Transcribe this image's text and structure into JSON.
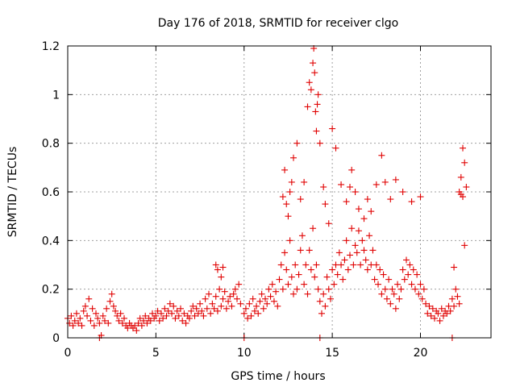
{
  "chart_data": {
    "type": "scatter",
    "title": "Day 176 of 2018, SRMTID for receiver clgo",
    "xlabel": "GPS time / hours",
    "ylabel": "SRMTID / TECUs",
    "xlim": [
      0,
      24
    ],
    "ylim": [
      0,
      1.2
    ],
    "xticks": [
      0,
      5,
      10,
      15,
      20
    ],
    "xtick_labels": [
      "0",
      "5",
      "10",
      "15",
      "20"
    ],
    "yticks": [
      0,
      0.2,
      0.4,
      0.6,
      0.8,
      1,
      1.2
    ],
    "ytick_labels": [
      "0",
      "0.2",
      "0.4",
      "0.6",
      "0.8",
      "1",
      "1.2"
    ],
    "grid": true,
    "marker": "+",
    "color": "#e00000",
    "series": [
      {
        "name": "SRMTID",
        "x": [
          0.0,
          0.1,
          0.2,
          0.3,
          0.4,
          0.5,
          0.6,
          0.7,
          0.8,
          0.9,
          1.0,
          1.1,
          1.2,
          1.3,
          1.4,
          1.5,
          1.6,
          1.7,
          1.8,
          2.0,
          2.1,
          2.2,
          2.3,
          2.4,
          2.5,
          2.6,
          2.7,
          2.8,
          2.9,
          3.0,
          3.1,
          3.2,
          3.3,
          3.4,
          3.5,
          3.6,
          3.7,
          3.8,
          3.9,
          4.0,
          4.1,
          4.2,
          4.3,
          4.4,
          4.5,
          4.6,
          4.7,
          4.8,
          4.9,
          5.0,
          5.1,
          5.2,
          5.3,
          5.4,
          5.5,
          5.6,
          5.7,
          5.8,
          5.9,
          6.0,
          6.1,
          6.2,
          6.3,
          6.4,
          6.5,
          6.6,
          6.7,
          6.8,
          6.9,
          7.0,
          7.1,
          7.2,
          7.3,
          7.4,
          7.5,
          7.6,
          7.7,
          7.8,
          7.9,
          8.0,
          8.1,
          8.2,
          8.3,
          8.4,
          8.5,
          8.6,
          8.7,
          8.8,
          8.9,
          9.0,
          9.1,
          9.2,
          9.3,
          9.4,
          9.5,
          9.6,
          9.7,
          9.8,
          10.0,
          10.1,
          10.2,
          10.3,
          10.4,
          10.5,
          10.6,
          10.7,
          10.8,
          10.9,
          11.0,
          11.1,
          11.2,
          11.3,
          11.4,
          11.5,
          11.6,
          11.7,
          11.8,
          11.9,
          12.0,
          12.1,
          12.2,
          12.3,
          12.4,
          12.5,
          12.6,
          12.7,
          12.8,
          12.9,
          13.0,
          13.1,
          13.2,
          13.3,
          13.4,
          13.5,
          13.6,
          13.7,
          13.8,
          13.9,
          14.0,
          14.1,
          14.2,
          14.3,
          14.4,
          14.5,
          14.6,
          14.7,
          14.8,
          14.9,
          15.0,
          15.1,
          15.2,
          15.3,
          15.4,
          15.5,
          15.6,
          15.7,
          15.8,
          15.9,
          16.0,
          16.1,
          16.2,
          16.3,
          16.4,
          16.5,
          16.6,
          16.7,
          16.8,
          16.9,
          17.0,
          17.1,
          17.2,
          17.3,
          17.4,
          17.5,
          17.6,
          17.7,
          17.8,
          17.9,
          18.0,
          18.1,
          18.2,
          18.3,
          18.4,
          18.5,
          18.6,
          18.7,
          18.8,
          18.9,
          19.0,
          19.1,
          19.2,
          19.3,
          19.4,
          19.5,
          19.6,
          19.7,
          19.8,
          19.9,
          20.0,
          20.1,
          20.2,
          20.3,
          20.4,
          20.5,
          20.6,
          20.7,
          20.8,
          20.9,
          21.0,
          21.1,
          21.2,
          21.3,
          21.4,
          21.5,
          21.6,
          21.7,
          21.8,
          21.9,
          22.0,
          22.1,
          22.2,
          22.3,
          22.4,
          22.5,
          22.6,
          12.2,
          12.3,
          12.4,
          12.5,
          12.6,
          12.7,
          12.8,
          13.0,
          13.2,
          13.4,
          13.6,
          13.7,
          13.8,
          13.9,
          13.95,
          14.0,
          14.05,
          14.1,
          14.15,
          14.2,
          14.3,
          14.5,
          14.6,
          14.8,
          15.0,
          15.2,
          15.5,
          15.8,
          16.0,
          16.1,
          16.3,
          16.5,
          16.8,
          17.0,
          17.2,
          17.5,
          17.8,
          18.0,
          18.3,
          18.6,
          19.0,
          19.5,
          20.0,
          22.2,
          22.3,
          22.4,
          22.5,
          1.8,
          1.9,
          10.0,
          14.3,
          21.8,
          21.9,
          8.4,
          8.5,
          8.7,
          8.8
        ],
        "y": [
          0.08,
          0.06,
          0.09,
          0.05,
          0.07,
          0.1,
          0.06,
          0.08,
          0.05,
          0.11,
          0.13,
          0.09,
          0.16,
          0.07,
          0.12,
          0.05,
          0.1,
          0.08,
          0.06,
          0.09,
          0.07,
          0.12,
          0.06,
          0.15,
          0.18,
          0.13,
          0.11,
          0.09,
          0.07,
          0.1,
          0.06,
          0.08,
          0.05,
          0.04,
          0.06,
          0.05,
          0.04,
          0.05,
          0.03,
          0.06,
          0.08,
          0.05,
          0.07,
          0.09,
          0.06,
          0.08,
          0.07,
          0.1,
          0.08,
          0.09,
          0.11,
          0.07,
          0.1,
          0.08,
          0.12,
          0.09,
          0.11,
          0.14,
          0.1,
          0.13,
          0.08,
          0.11,
          0.09,
          0.12,
          0.07,
          0.1,
          0.06,
          0.09,
          0.08,
          0.11,
          0.13,
          0.09,
          0.12,
          0.1,
          0.14,
          0.11,
          0.09,
          0.16,
          0.12,
          0.18,
          0.1,
          0.14,
          0.12,
          0.17,
          0.11,
          0.2,
          0.13,
          0.16,
          0.19,
          0.12,
          0.15,
          0.17,
          0.13,
          0.18,
          0.2,
          0.16,
          0.22,
          0.14,
          0.1,
          0.12,
          0.08,
          0.14,
          0.09,
          0.16,
          0.11,
          0.13,
          0.1,
          0.15,
          0.18,
          0.12,
          0.16,
          0.14,
          0.2,
          0.17,
          0.22,
          0.15,
          0.19,
          0.13,
          0.24,
          0.3,
          0.2,
          0.35,
          0.28,
          0.22,
          0.4,
          0.25,
          0.18,
          0.3,
          0.2,
          0.26,
          0.36,
          0.42,
          0.22,
          0.3,
          0.18,
          0.36,
          0.28,
          0.45,
          0.25,
          0.3,
          0.2,
          0.15,
          0.1,
          0.18,
          0.13,
          0.25,
          0.2,
          0.16,
          0.28,
          0.22,
          0.3,
          0.26,
          0.35,
          0.3,
          0.24,
          0.32,
          0.4,
          0.28,
          0.34,
          0.45,
          0.3,
          0.38,
          0.35,
          0.44,
          0.3,
          0.4,
          0.36,
          0.32,
          0.28,
          0.42,
          0.3,
          0.36,
          0.24,
          0.3,
          0.22,
          0.28,
          0.18,
          0.26,
          0.2,
          0.16,
          0.24,
          0.14,
          0.2,
          0.18,
          0.12,
          0.22,
          0.16,
          0.2,
          0.28,
          0.24,
          0.32,
          0.26,
          0.3,
          0.22,
          0.28,
          0.2,
          0.26,
          0.18,
          0.22,
          0.16,
          0.2,
          0.14,
          0.1,
          0.13,
          0.09,
          0.12,
          0.08,
          0.11,
          0.1,
          0.07,
          0.12,
          0.09,
          0.11,
          0.1,
          0.13,
          0.11,
          0.16,
          0.13,
          0.2,
          0.17,
          0.14,
          0.66,
          0.78,
          0.72,
          0.62,
          0.58,
          0.69,
          0.55,
          0.5,
          0.6,
          0.64,
          0.74,
          0.8,
          0.57,
          0.64,
          0.95,
          1.05,
          1.02,
          1.13,
          1.19,
          1.09,
          0.93,
          0.85,
          0.96,
          1.0,
          0.8,
          0.62,
          0.55,
          0.47,
          0.86,
          0.78,
          0.63,
          0.56,
          0.62,
          0.69,
          0.6,
          0.53,
          0.49,
          0.57,
          0.52,
          0.63,
          0.75,
          0.64,
          0.57,
          0.65,
          0.6,
          0.56,
          0.58,
          0.6,
          0.59,
          0.58,
          0.38,
          0.0,
          0.01,
          0.0,
          0.0,
          0.0,
          0.29,
          0.3,
          0.28,
          0.25,
          0.29
        ]
      }
    ]
  }
}
